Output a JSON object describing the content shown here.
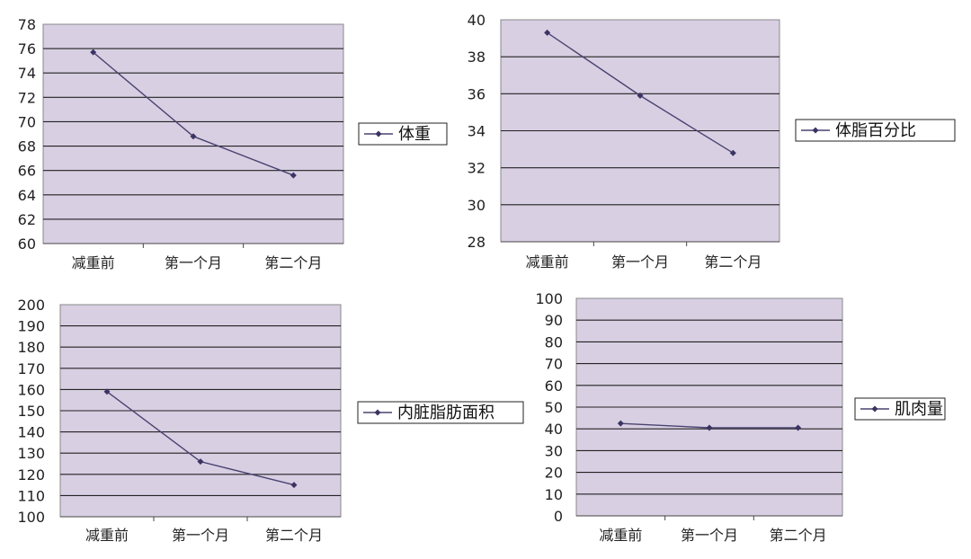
{
  "style": {
    "plot_bg": "#d8cfe3",
    "grid_color": "#222222",
    "line_color": "#4a4470",
    "marker_color": "#3b3463"
  },
  "chart_data": [
    {
      "type": "line",
      "categories": [
        "减重前",
        "第一个月",
        "第二个月"
      ],
      "series": [
        {
          "name": "体重",
          "values": [
            75.7,
            68.8,
            65.6
          ]
        }
      ],
      "ylim": [
        60,
        78
      ],
      "ystep": 2,
      "grid": true,
      "legend": "right"
    },
    {
      "type": "line",
      "categories": [
        "减重前",
        "第一个月",
        "第二个月"
      ],
      "series": [
        {
          "name": "体脂百分比",
          "values": [
            39.3,
            35.9,
            32.8
          ]
        }
      ],
      "ylim": [
        28,
        40
      ],
      "ystep": 2,
      "grid": true,
      "legend": "right"
    },
    {
      "type": "line",
      "categories": [
        "减重前",
        "第一个月",
        "第二个月"
      ],
      "series": [
        {
          "name": "内脏脂肪面积",
          "values": [
            159,
            126,
            115
          ]
        }
      ],
      "ylim": [
        100,
        200
      ],
      "ystep": 10,
      "grid": true,
      "legend": "right"
    },
    {
      "type": "line",
      "categories": [
        "减重前",
        "第一个月",
        "第二个月"
      ],
      "series": [
        {
          "name": "肌肉量",
          "values": [
            42.5,
            40.5,
            40.5
          ]
        }
      ],
      "ylim": [
        0,
        100
      ],
      "ystep": 10,
      "grid": true,
      "legend": "right"
    }
  ]
}
